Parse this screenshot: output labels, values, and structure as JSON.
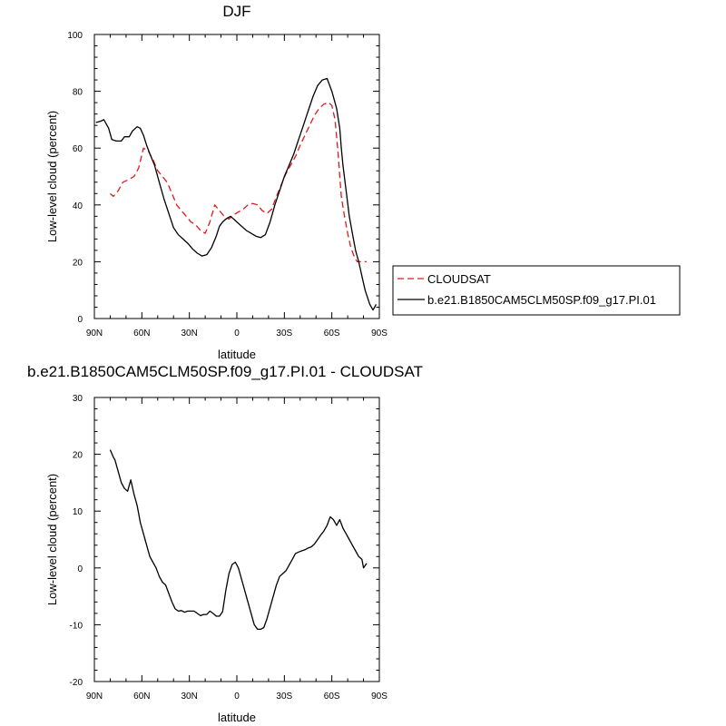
{
  "chart_data": [
    {
      "type": "line",
      "title": "DJF",
      "xlabel": "latitude",
      "ylabel": "Low-level cloud (percent)",
      "xlim": [
        90,
        -90
      ],
      "ylim": [
        0,
        100
      ],
      "x_tick_values": [
        90,
        60,
        30,
        0,
        -30,
        -60,
        -90
      ],
      "x_tick_labels": [
        "90N",
        "60N",
        "30N",
        "0",
        "30S",
        "60S",
        "90S"
      ],
      "y_tick_values": [
        0,
        20,
        40,
        60,
        80,
        100
      ],
      "y_tick_labels": [
        "0",
        "20",
        "40",
        "60",
        "80",
        "100"
      ],
      "legend_position": "outside-right",
      "series": [
        {
          "name": "CLOUDSAT",
          "color": "#e0191c",
          "dash": "dashed",
          "x": [
            80,
            78,
            75,
            72,
            68,
            65,
            62,
            59,
            56,
            53,
            50,
            47,
            44,
            41,
            38,
            35,
            32,
            29,
            26,
            23,
            20,
            17,
            14,
            11,
            8,
            5,
            2,
            -1,
            -4,
            -7,
            -10,
            -13,
            -16,
            -19,
            -22,
            -25,
            -28,
            -31,
            -34,
            -37,
            -40,
            -43,
            -46,
            -49,
            -52,
            -55,
            -58,
            -60,
            -62,
            -63,
            -64,
            -65,
            -66,
            -68,
            -70,
            -72,
            -74,
            -76,
            -78,
            -80,
            -82
          ],
          "y": [
            44,
            43,
            45,
            48,
            49,
            50,
            53,
            60,
            59,
            56,
            52,
            50,
            48,
            44,
            40,
            38,
            36,
            34,
            33,
            31,
            30,
            34,
            40,
            38,
            36,
            35,
            36.5,
            37.5,
            38.5,
            40,
            40.5,
            40,
            38,
            37,
            38.5,
            43,
            47,
            51,
            54,
            57,
            61,
            64.5,
            68,
            71.5,
            74,
            75.5,
            76,
            75,
            70,
            64,
            58,
            50,
            43,
            36,
            30,
            25,
            22,
            20,
            20,
            20,
            20
          ]
        },
        {
          "name": "b.e21.B1850CAM5CLM50SP.f09_g17.PI.01",
          "color": "#000000",
          "dash": "solid",
          "x": [
            89,
            86,
            84,
            81,
            79,
            76,
            73,
            71,
            68,
            66,
            63,
            61,
            59,
            57,
            55,
            52,
            49,
            46,
            43,
            40,
            37,
            34,
            31,
            28,
            25,
            22,
            19,
            16,
            13,
            11,
            9,
            7,
            4,
            2,
            0,
            -3,
            -6,
            -9,
            -12,
            -15,
            -18,
            -21,
            -24,
            -27,
            -30,
            -33,
            -36,
            -39,
            -42,
            -45,
            -48,
            -51,
            -54,
            -57,
            -60,
            -63,
            -65,
            -66,
            -67,
            -69,
            -71,
            -73,
            -75,
            -77,
            -79,
            -81,
            -84,
            -86,
            -88
          ],
          "y": [
            69,
            69.5,
            70,
            67,
            63,
            62.5,
            62.5,
            64,
            64,
            66,
            67.5,
            67,
            64.5,
            61,
            58,
            54,
            48,
            42,
            37,
            32,
            29.5,
            28,
            26.5,
            24.5,
            23,
            22,
            22.5,
            25,
            29,
            32.5,
            34,
            35,
            36,
            35,
            34,
            32.5,
            31,
            30,
            29,
            28.5,
            29.5,
            34,
            40,
            45,
            50,
            54,
            58,
            63,
            68,
            73,
            78,
            82,
            84,
            84.5,
            80,
            74,
            67,
            60,
            54,
            45,
            36,
            30,
            24,
            20,
            15,
            10,
            5,
            3,
            5
          ]
        }
      ]
    },
    {
      "type": "line",
      "title": "b.e21.B1850CAM5CLM50SP.f09_g17.PI.01 - CLOUDSAT",
      "xlabel": "latitude",
      "ylabel": "Low-level cloud (percent)",
      "xlim": [
        90,
        -90
      ],
      "ylim": [
        -20,
        30
      ],
      "x_tick_values": [
        90,
        60,
        30,
        0,
        -30,
        -60,
        -90
      ],
      "x_tick_labels": [
        "90N",
        "60N",
        "30N",
        "0",
        "30S",
        "60S",
        "90S"
      ],
      "y_tick_values": [
        -20,
        -10,
        0,
        10,
        20,
        30
      ],
      "y_tick_labels": [
        "-20",
        "-10",
        "0",
        "10",
        "20",
        "30"
      ],
      "series": [
        {
          "color": "#000000",
          "dash": "solid",
          "x": [
            80,
            78,
            77,
            75,
            73,
            71,
            69,
            67,
            65,
            63,
            61,
            59,
            57,
            55,
            53,
            51,
            49,
            47,
            45,
            43,
            41,
            39,
            37,
            35,
            33,
            31,
            29,
            27,
            25,
            23,
            21,
            19,
            17,
            15,
            13,
            11,
            9,
            7,
            5,
            3,
            1,
            -1,
            -3,
            -5,
            -7,
            -9,
            -11,
            -13,
            -15,
            -17,
            -19,
            -21,
            -23,
            -25,
            -27,
            -29,
            -31,
            -33,
            -35,
            -37,
            -39,
            -41,
            -43,
            -45,
            -47,
            -49,
            -51,
            -53,
            -55,
            -57,
            -59,
            -61,
            -63,
            -65,
            -67,
            -68,
            -69,
            -71,
            -73,
            -75,
            -77,
            -79,
            -80,
            -82
          ],
          "y": [
            20.8,
            19.5,
            19,
            17,
            15,
            14,
            13.5,
            15.5,
            13,
            11,
            8,
            6,
            4,
            2,
            1,
            0,
            -1.5,
            -2.5,
            -3,
            -4.5,
            -6,
            -7.2,
            -7.6,
            -7.5,
            -7.8,
            -7.6,
            -7.6,
            -7.6,
            -8.0,
            -8.4,
            -8.2,
            -8.2,
            -7.6,
            -8.0,
            -8.5,
            -8.5,
            -7.7,
            -4,
            -1,
            0.6,
            1,
            0,
            -2,
            -4,
            -6,
            -8,
            -10,
            -10.8,
            -10.8,
            -10.5,
            -9,
            -7,
            -5,
            -3,
            -1.5,
            -1,
            -0.5,
            0.5,
            1.5,
            2.5,
            2.8,
            3.0,
            3.2,
            3.5,
            3.7,
            4.2,
            5.0,
            5.8,
            6.5,
            7.5,
            9.0,
            8.5,
            7.5,
            8.5,
            7.0,
            6.5,
            6.0,
            5.0,
            4.0,
            3.0,
            2.0,
            1.5,
            0.0,
            0.8
          ]
        }
      ]
    }
  ]
}
